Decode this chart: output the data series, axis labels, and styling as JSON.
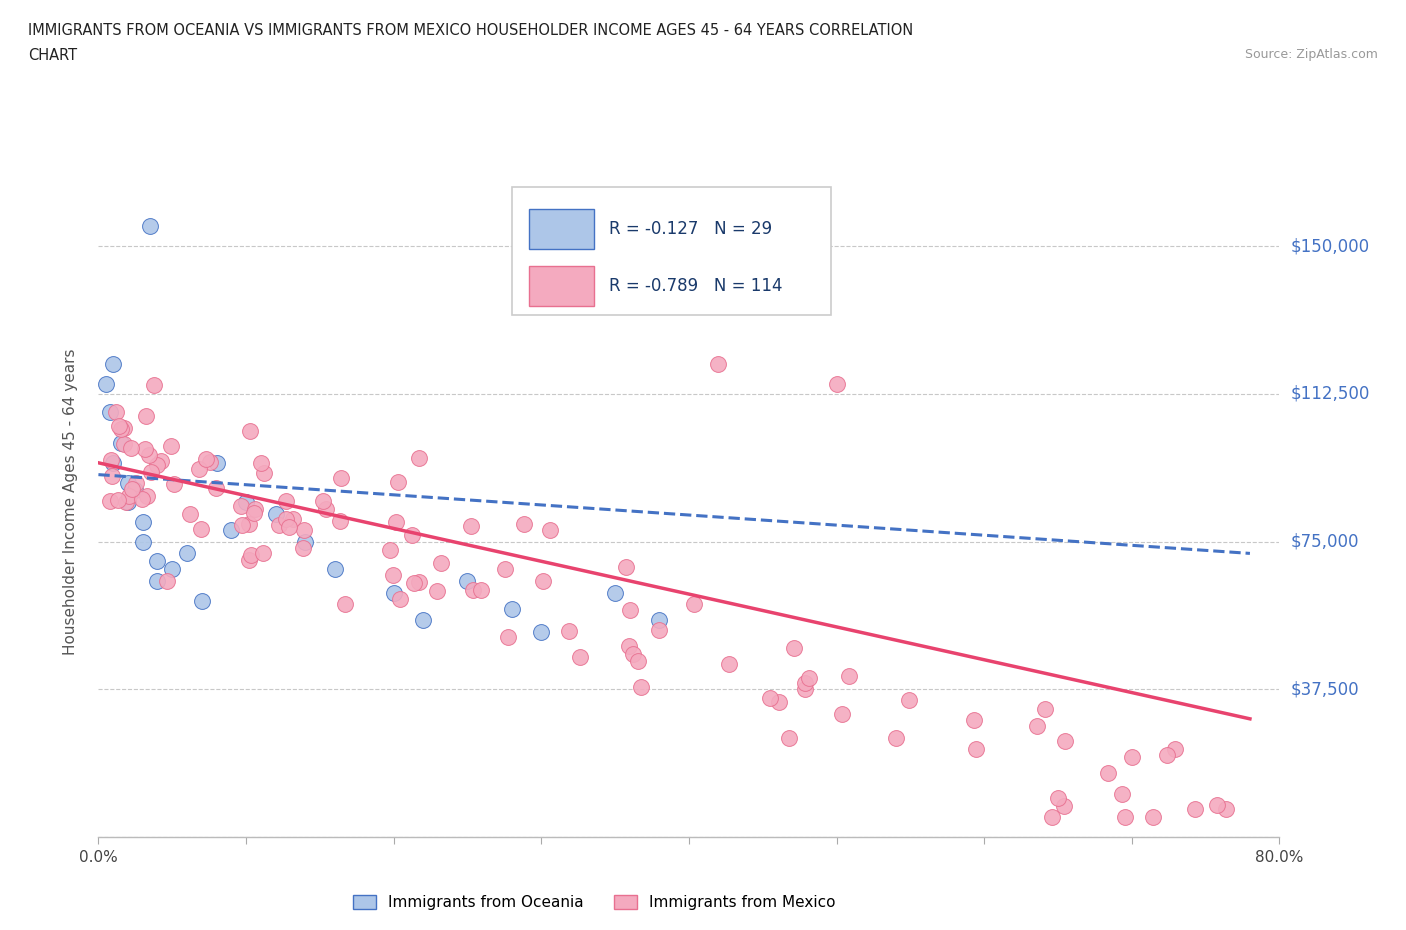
{
  "title_line1": "IMMIGRANTS FROM OCEANIA VS IMMIGRANTS FROM MEXICO HOUSEHOLDER INCOME AGES 45 - 64 YEARS CORRELATION",
  "title_line2": "CHART",
  "source": "Source: ZipAtlas.com",
  "ylabel": "Householder Income Ages 45 - 64 years",
  "xmin": 0.0,
  "xmax": 0.8,
  "ymin": 0,
  "ymax": 170000,
  "yticks": [
    0,
    37500,
    75000,
    112500,
    150000
  ],
  "ytick_labels": [
    "",
    "$37,500",
    "$75,000",
    "$112,500",
    "$150,000"
  ],
  "xticks": [
    0.0,
    0.1,
    0.2,
    0.3,
    0.4,
    0.5,
    0.6,
    0.7,
    0.8
  ],
  "xtick_labels": [
    "0.0%",
    "",
    "",
    "",
    "",
    "",
    "",
    "",
    "80.0%"
  ],
  "R_oceania": -0.127,
  "N_oceania": 29,
  "R_mexico": -0.789,
  "N_mexico": 114,
  "color_oceania": "#adc6e8",
  "color_mexico": "#f4aabf",
  "line_color_oceania": "#4472c4",
  "line_color_mexico": "#e8436e",
  "right_axis_color": "#4472c4",
  "background_color": "#ffffff",
  "grid_color": "#c8c8c8",
  "legend_label_oceania": "Immigrants from Oceania",
  "legend_label_mexico": "Immigrants from Mexico"
}
